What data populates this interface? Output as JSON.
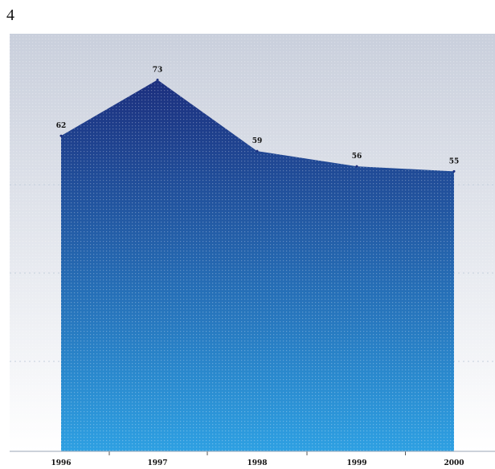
{
  "page": {
    "number": "4"
  },
  "colors": {
    "area_top": "#1c2f7e",
    "area_bottom": "#2ea0e2",
    "background_top": "#c9cfdc",
    "background_bottom": "#ffffff",
    "gridline": "#c4d0dc"
  },
  "chart_data": {
    "type": "area",
    "title": "",
    "xlabel": "",
    "ylabel": "",
    "categories": [
      "1996",
      "1997",
      "1998",
      "1999",
      "2000"
    ],
    "values": [
      62,
      73,
      59,
      56,
      55
    ],
    "data_labels": [
      "62",
      "73",
      "59",
      "56",
      "55"
    ],
    "ylim": [
      0,
      80
    ],
    "grid": true,
    "legend": "none"
  }
}
